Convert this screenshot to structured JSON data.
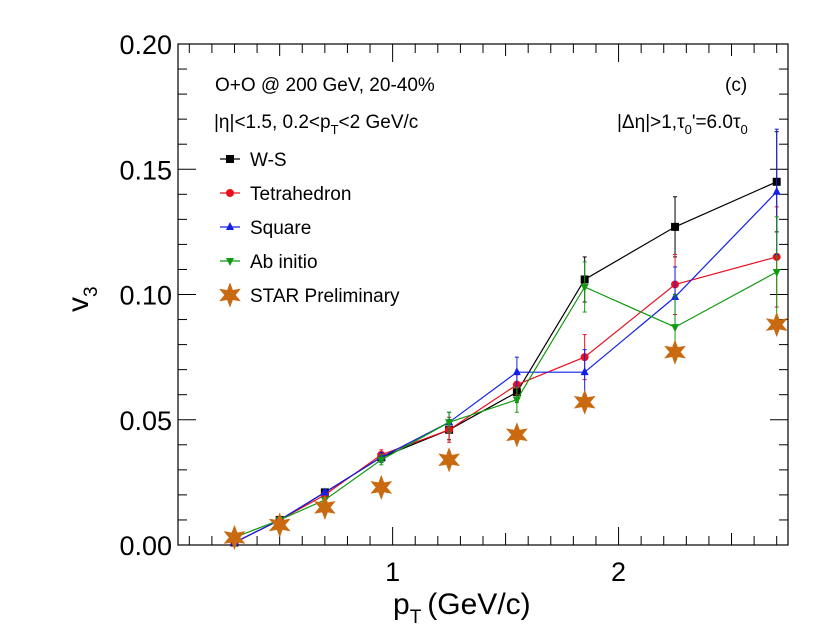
{
  "chart_data": {
    "type": "line",
    "title": "",
    "xlabel": "p",
    "xlabel_sub": "T",
    "xlabel_units": "(GeV/c)",
    "ylabel": "v",
    "ylabel_sub": "3",
    "xlim": [
      0.05,
      2.75
    ],
    "ylim": [
      0.0,
      0.2
    ],
    "grid": false,
    "yticks": [
      {
        "value": 0.0,
        "label": "0.00"
      },
      {
        "value": 0.05,
        "label": "0.05"
      },
      {
        "value": 0.1,
        "label": "0.10"
      },
      {
        "value": 0.15,
        "label": "0.15"
      },
      {
        "value": 0.2,
        "label": "0.20"
      }
    ],
    "xticks": [
      {
        "value": 1,
        "label": "1"
      },
      {
        "value": 2,
        "label": "2"
      }
    ],
    "annotations": {
      "system": "O+O @ 200 GeV, 20-40%",
      "cuts_eta": "|η|<1.5, 0.2<p",
      "cuts_pt_sub": "T",
      "cuts_pt_rest": "<2 GeV/c",
      "panel": "(c)",
      "deta_part1": "|Δη|>1,τ",
      "deta_sub1": "0",
      "deta_part2": "'=6.0τ",
      "deta_sub2": "0"
    },
    "legend_position": "top-left",
    "series": [
      {
        "name": "W-S",
        "color": "#000000",
        "marker": "square",
        "x": [
          0.3,
          0.5,
          0.7,
          0.95,
          1.25,
          1.55,
          1.85,
          2.25,
          2.7
        ],
        "y": [
          0.001,
          0.01,
          0.021,
          0.035,
          0.046,
          0.061,
          0.106,
          0.127,
          0.145
        ],
        "err": [
          0.001,
          0.001,
          0.001,
          0.002,
          0.004,
          0.004,
          0.009,
          0.012,
          0.02
        ]
      },
      {
        "name": "Tetrahedron",
        "color": "#e8101e",
        "marker": "circle",
        "x": [
          0.3,
          0.5,
          0.7,
          0.95,
          1.25,
          1.55,
          1.85,
          2.25,
          2.7
        ],
        "y": [
          0.001,
          0.01,
          0.02,
          0.036,
          0.046,
          0.064,
          0.075,
          0.104,
          0.115
        ],
        "err": [
          0.001,
          0.001,
          0.001,
          0.002,
          0.005,
          0.004,
          0.009,
          0.012,
          0.02
        ]
      },
      {
        "name": "Square",
        "color": "#1020e8",
        "marker": "triangle-up",
        "x": [
          0.3,
          0.5,
          0.7,
          0.95,
          1.25,
          1.55,
          1.85,
          2.25,
          2.7
        ],
        "y": [
          0.001,
          0.01,
          0.021,
          0.035,
          0.049,
          0.069,
          0.069,
          0.099,
          0.141
        ],
        "err": [
          0.001,
          0.001,
          0.001,
          0.002,
          0.004,
          0.006,
          0.009,
          0.012,
          0.025
        ]
      },
      {
        "name": "Ab initio",
        "color": "#109a10",
        "marker": "triangle-down",
        "x": [
          0.3,
          0.5,
          0.7,
          0.95,
          1.25,
          1.55,
          1.85,
          2.25,
          2.7
        ],
        "y": [
          0.003,
          0.01,
          0.018,
          0.034,
          0.049,
          0.058,
          0.103,
          0.087,
          0.109
        ],
        "err": [
          0.001,
          0.001,
          0.001,
          0.002,
          0.004,
          0.005,
          0.01,
          0.013,
          0.022
        ]
      },
      {
        "name": "STAR Preliminary",
        "color": "#c96a10",
        "marker": "star",
        "line": false,
        "x": [
          0.3,
          0.5,
          0.7,
          0.95,
          1.25,
          1.55,
          1.85,
          2.25,
          2.7
        ],
        "y": [
          0.003,
          0.008,
          0.015,
          0.023,
          0.034,
          0.044,
          0.057,
          0.077,
          0.088
        ]
      }
    ]
  }
}
